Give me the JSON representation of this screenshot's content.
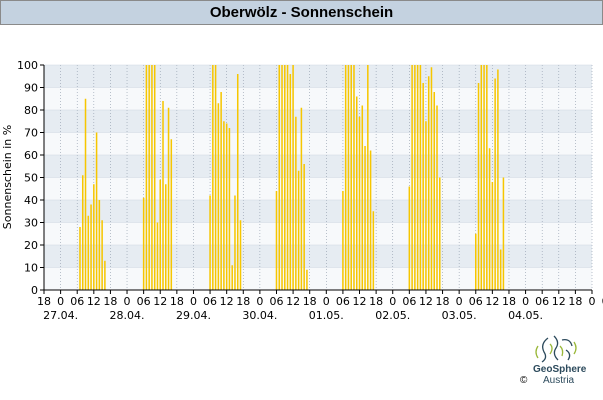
{
  "header": {
    "title": "Oberwölz - Sonnenschein"
  },
  "logo": {
    "name": "GeoSphere",
    "sub": "Austria",
    "copyright": "©"
  },
  "colors": {
    "bar": "#f6c600",
    "band_dark": "#e6ecf2",
    "band_light": "#f7f9fb",
    "header_bg": "#c4d2e0",
    "axis": "#000000",
    "grid": "#8e9aaa"
  },
  "chart_data": {
    "type": "bar",
    "title": "Oberwölz - Sonnenschein",
    "ylabel": "Sonnenschein in %",
    "xlabel": "",
    "ylim": [
      0,
      100
    ],
    "yticks": [
      0,
      10,
      20,
      30,
      40,
      50,
      60,
      70,
      80,
      90,
      100
    ],
    "grid": true,
    "xlim_hours": [
      0,
      198
    ],
    "x_tick_labels": [
      "18",
      "0",
      "06",
      "12",
      "18",
      "0",
      "06",
      "12",
      "18",
      "0",
      "06",
      "12",
      "18",
      "0",
      "06",
      "12",
      "18",
      "0",
      "06",
      "12",
      "18",
      "0",
      "06",
      "12",
      "18",
      "0",
      "06",
      "12",
      "18",
      "0",
      "06",
      "12",
      "18",
      "0",
      "06"
    ],
    "date_labels": [
      "27.04.",
      "28.04.",
      "29.04.",
      "30.04.",
      "01.05.",
      "02.05.",
      "03.05.",
      "04.05."
    ],
    "series": [
      {
        "values": [
          {
            "x": "27.04. 07:00",
            "y": 28
          },
          {
            "x": "27.04. 08:00",
            "y": 51
          },
          {
            "x": "27.04. 09:00",
            "y": 85
          },
          {
            "x": "27.04. 10:00",
            "y": 33
          },
          {
            "x": "27.04. 11:00",
            "y": 38
          },
          {
            "x": "27.04. 12:00",
            "y": 47
          },
          {
            "x": "27.04. 13:00",
            "y": 70
          },
          {
            "x": "27.04. 14:00",
            "y": 40
          },
          {
            "x": "27.04. 15:00",
            "y": 31
          },
          {
            "x": "27.04. 16:00",
            "y": 13
          },
          {
            "x": "28.04. 06:00",
            "y": 41
          },
          {
            "x": "28.04. 07:00",
            "y": 100
          },
          {
            "x": "28.04. 08:00",
            "y": 100
          },
          {
            "x": "28.04. 09:00",
            "y": 100
          },
          {
            "x": "28.04. 10:00",
            "y": 100
          },
          {
            "x": "28.04. 11:00",
            "y": 30
          },
          {
            "x": "28.04. 12:00",
            "y": 49
          },
          {
            "x": "28.04. 13:00",
            "y": 84
          },
          {
            "x": "28.04. 14:00",
            "y": 47
          },
          {
            "x": "28.04. 15:00",
            "y": 81
          },
          {
            "x": "28.04. 16:00",
            "y": 67
          },
          {
            "x": "29.04. 06:00",
            "y": 42
          },
          {
            "x": "29.04. 07:00",
            "y": 100
          },
          {
            "x": "29.04. 08:00",
            "y": 100
          },
          {
            "x": "29.04. 09:00",
            "y": 83
          },
          {
            "x": "29.04. 10:00",
            "y": 88
          },
          {
            "x": "29.04. 11:00",
            "y": 75
          },
          {
            "x": "29.04. 12:00",
            "y": 74
          },
          {
            "x": "29.04. 13:00",
            "y": 72
          },
          {
            "x": "29.04. 14:00",
            "y": 11
          },
          {
            "x": "29.04. 15:00",
            "y": 42
          },
          {
            "x": "29.04. 16:00",
            "y": 96
          },
          {
            "x": "29.04. 17:00",
            "y": 31
          },
          {
            "x": "30.04. 06:00",
            "y": 44
          },
          {
            "x": "30.04. 07:00",
            "y": 100
          },
          {
            "x": "30.04. 08:00",
            "y": 100
          },
          {
            "x": "30.04. 09:00",
            "y": 100
          },
          {
            "x": "30.04. 10:00",
            "y": 100
          },
          {
            "x": "30.04. 11:00",
            "y": 96
          },
          {
            "x": "30.04. 12:00",
            "y": 100
          },
          {
            "x": "30.04. 13:00",
            "y": 77
          },
          {
            "x": "30.04. 14:00",
            "y": 53
          },
          {
            "x": "30.04. 15:00",
            "y": 81
          },
          {
            "x": "30.04. 16:00",
            "y": 56
          },
          {
            "x": "30.04. 17:00",
            "y": 9
          },
          {
            "x": "01.05. 06:00",
            "y": 44
          },
          {
            "x": "01.05. 07:00",
            "y": 100
          },
          {
            "x": "01.05. 08:00",
            "y": 100
          },
          {
            "x": "01.05. 09:00",
            "y": 100
          },
          {
            "x": "01.05. 10:00",
            "y": 100
          },
          {
            "x": "01.05. 11:00",
            "y": 86
          },
          {
            "x": "01.05. 12:00",
            "y": 77
          },
          {
            "x": "01.05. 13:00",
            "y": 82
          },
          {
            "x": "01.05. 14:00",
            "y": 64
          },
          {
            "x": "01.05. 15:00",
            "y": 100
          },
          {
            "x": "01.05. 16:00",
            "y": 62
          },
          {
            "x": "01.05. 17:00",
            "y": 35
          },
          {
            "x": "02.05. 06:00",
            "y": 46
          },
          {
            "x": "02.05. 07:00",
            "y": 100
          },
          {
            "x": "02.05. 08:00",
            "y": 100
          },
          {
            "x": "02.05. 09:00",
            "y": 100
          },
          {
            "x": "02.05. 10:00",
            "y": 100
          },
          {
            "x": "02.05. 11:00",
            "y": 92
          },
          {
            "x": "02.05. 12:00",
            "y": 75
          },
          {
            "x": "02.05. 13:00",
            "y": 95
          },
          {
            "x": "02.05. 14:00",
            "y": 99
          },
          {
            "x": "02.05. 15:00",
            "y": 88
          },
          {
            "x": "02.05. 16:00",
            "y": 82
          },
          {
            "x": "02.05. 17:00",
            "y": 50
          },
          {
            "x": "03.05. 06:00",
            "y": 25
          },
          {
            "x": "03.05. 07:00",
            "y": 92
          },
          {
            "x": "03.05. 08:00",
            "y": 100
          },
          {
            "x": "03.05. 09:00",
            "y": 100
          },
          {
            "x": "03.05. 10:00",
            "y": 100
          },
          {
            "x": "03.05. 11:00",
            "y": 63
          },
          {
            "x": "03.05. 12:00",
            "y": 48
          },
          {
            "x": "03.05. 13:00",
            "y": 94
          },
          {
            "x": "03.05. 14:00",
            "y": 98
          },
          {
            "x": "03.05. 15:00",
            "y": 18
          },
          {
            "x": "03.05. 16:00",
            "y": 50
          }
        ]
      }
    ]
  }
}
